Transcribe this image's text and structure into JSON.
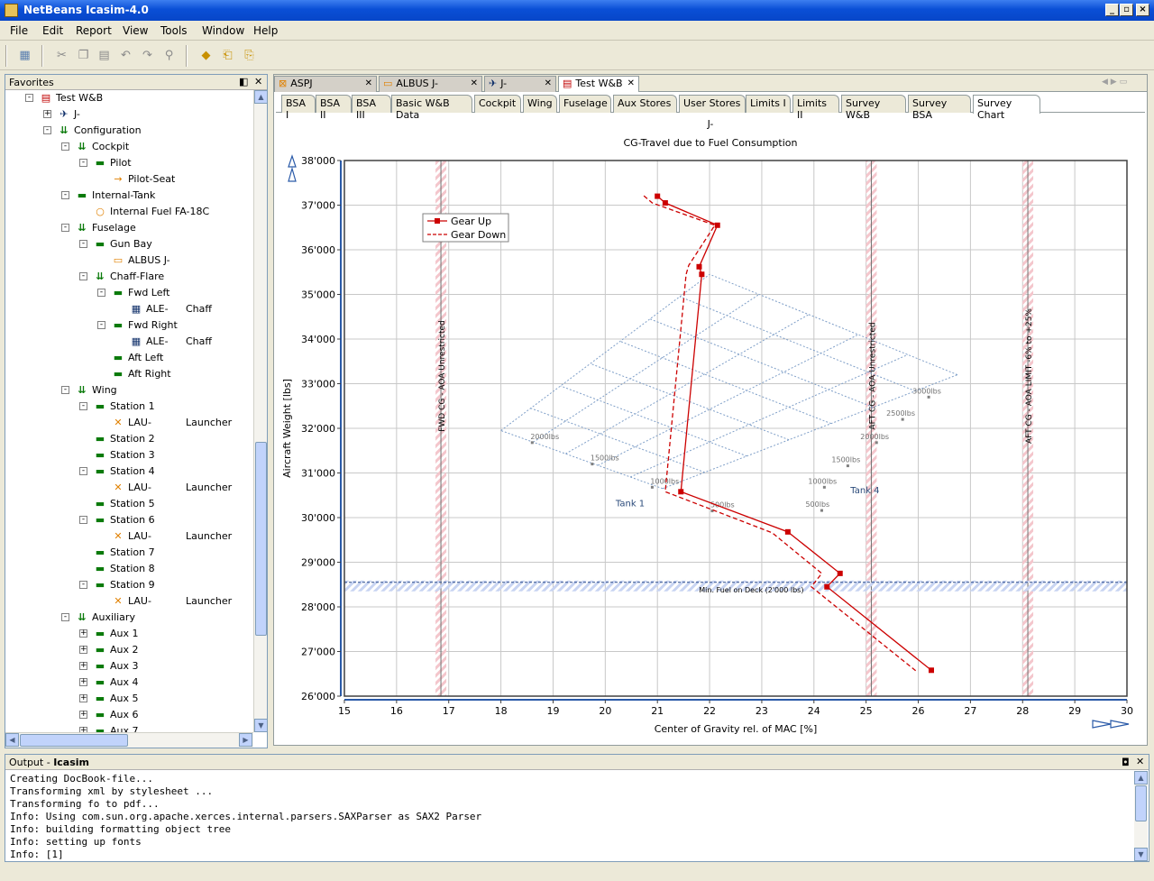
{
  "window": {
    "title": "NetBeans Icasim-4.0"
  },
  "menu": [
    "File",
    "Edit",
    "Report",
    "View",
    "Tools",
    "Window",
    "Help"
  ],
  "favorites": {
    "title": "Favorites",
    "tree": [
      {
        "label": "Test W&B",
        "depth": 1,
        "icon": "report-icon",
        "exp": "-"
      },
      {
        "label": "J-",
        "depth": 2,
        "icon": "aircraft-icon",
        "exp": "+"
      },
      {
        "label": "Configuration",
        "depth": 2,
        "icon": "config-icon",
        "exp": "-"
      },
      {
        "label": "Cockpit",
        "depth": 3,
        "icon": "config-icon",
        "exp": "-"
      },
      {
        "label": "Pilot",
        "depth": 4,
        "icon": "station-icon",
        "exp": "-"
      },
      {
        "label": "Pilot-Seat",
        "depth": 5,
        "icon": "seat-icon",
        "exp": ""
      },
      {
        "label": "Internal-Tank",
        "depth": 3,
        "icon": "station-icon",
        "exp": "-"
      },
      {
        "label": "Internal Fuel FA-18C",
        "depth": 4,
        "icon": "fuel-icon",
        "exp": ""
      },
      {
        "label": "Fuselage",
        "depth": 3,
        "icon": "config-icon",
        "exp": "-"
      },
      {
        "label": "Gun Bay",
        "depth": 4,
        "icon": "station-icon",
        "exp": "-"
      },
      {
        "label": "ALBUS J-",
        "depth": 5,
        "icon": "gun-icon",
        "exp": ""
      },
      {
        "label": "Chaff-Flare",
        "depth": 4,
        "icon": "config-icon",
        "exp": "-"
      },
      {
        "label": "Fwd Left",
        "depth": 5,
        "icon": "station-icon",
        "exp": "-"
      },
      {
        "label": "ALE-",
        "extra": "Chaff",
        "depth": 6,
        "icon": "chaff-icon",
        "exp": ""
      },
      {
        "label": "Fwd Right",
        "depth": 5,
        "icon": "station-icon",
        "exp": "-"
      },
      {
        "label": "ALE-",
        "extra": "Chaff",
        "depth": 6,
        "icon": "chaff-icon",
        "exp": ""
      },
      {
        "label": "Aft Left",
        "depth": 5,
        "icon": "station-icon",
        "exp": ""
      },
      {
        "label": "Aft Right",
        "depth": 5,
        "icon": "station-icon",
        "exp": ""
      },
      {
        "label": "Wing",
        "depth": 3,
        "icon": "config-icon",
        "exp": "-"
      },
      {
        "label": "Station 1",
        "depth": 4,
        "icon": "station-icon",
        "exp": "-"
      },
      {
        "label": "LAU-",
        "extra": "Launcher",
        "depth": 5,
        "icon": "launcher-icon",
        "exp": ""
      },
      {
        "label": "Station 2",
        "depth": 4,
        "icon": "station-icon",
        "exp": ""
      },
      {
        "label": "Station 3",
        "depth": 4,
        "icon": "station-icon",
        "exp": ""
      },
      {
        "label": "Station 4",
        "depth": 4,
        "icon": "station-icon",
        "exp": "-"
      },
      {
        "label": "LAU-",
        "extra": "Launcher",
        "depth": 5,
        "icon": "launcher-icon",
        "exp": ""
      },
      {
        "label": "Station 5",
        "depth": 4,
        "icon": "station-icon",
        "exp": ""
      },
      {
        "label": "Station 6",
        "depth": 4,
        "icon": "station-icon",
        "exp": "-"
      },
      {
        "label": "LAU-",
        "extra": "Launcher",
        "depth": 5,
        "icon": "launcher-icon",
        "exp": ""
      },
      {
        "label": "Station 7",
        "depth": 4,
        "icon": "station-icon",
        "exp": ""
      },
      {
        "label": "Station 8",
        "depth": 4,
        "icon": "station-icon",
        "exp": ""
      },
      {
        "label": "Station 9",
        "depth": 4,
        "icon": "station-icon",
        "exp": "-"
      },
      {
        "label": "LAU-",
        "extra": "Launcher",
        "depth": 5,
        "icon": "launcher-icon",
        "exp": ""
      },
      {
        "label": "Auxiliary",
        "depth": 3,
        "icon": "config-icon",
        "exp": "-"
      },
      {
        "label": "Aux 1",
        "depth": 4,
        "icon": "station-icon",
        "exp": "+"
      },
      {
        "label": "Aux 2",
        "depth": 4,
        "icon": "station-icon",
        "exp": "+"
      },
      {
        "label": "Aux 3",
        "depth": 4,
        "icon": "station-icon",
        "exp": "+"
      },
      {
        "label": "Aux 4",
        "depth": 4,
        "icon": "station-icon",
        "exp": "+"
      },
      {
        "label": "Aux 5",
        "depth": 4,
        "icon": "station-icon",
        "exp": "+"
      },
      {
        "label": "Aux 6",
        "depth": 4,
        "icon": "station-icon",
        "exp": "+"
      },
      {
        "label": "Aux 7",
        "depth": 4,
        "icon": "station-icon",
        "exp": "+"
      }
    ]
  },
  "doc_tabs": [
    {
      "label": "ASPJ",
      "icon": "x-doc-icon",
      "selected": false
    },
    {
      "label": "ALBUS J-",
      "icon": "gun-icon",
      "selected": false
    },
    {
      "label": "J-",
      "icon": "aircraft-icon",
      "selected": false
    },
    {
      "label": "Test W&B",
      "icon": "report-icon",
      "selected": true
    }
  ],
  "sub_tabs": [
    "BSA I",
    "BSA II",
    "BSA III",
    "Basic W&B Data",
    "Cockpit",
    "Wing",
    "Fuselage",
    "Aux Stores",
    "User Stores",
    "Limits I",
    "Limits II",
    "Survey W&B",
    "Survey BSA",
    "Survey Chart"
  ],
  "selected_sub_tab": "Survey Chart",
  "chart_data": {
    "type": "line",
    "title": "J-",
    "subtitle": "CG-Travel due to Fuel Consumption",
    "xlabel": "Center of Gravity rel. of MAC [%]",
    "ylabel": "Aircraft Weight [lbs]",
    "xlim": [
      15,
      30
    ],
    "ylim": [
      26000,
      38000
    ],
    "x_ticks": [
      "15",
      "16",
      "17",
      "18",
      "19",
      "20",
      "21",
      "22",
      "23",
      "24",
      "25",
      "26",
      "27",
      "28",
      "29",
      "30"
    ],
    "y_ticks": [
      "26'000",
      "27'000",
      "28'000",
      "29'000",
      "30'000",
      "31'000",
      "32'000",
      "33'000",
      "34'000",
      "35'000",
      "36'000",
      "37'000",
      "38'000"
    ],
    "legend_position": "top-left",
    "series": [
      {
        "name": "Gear Up",
        "style": "solid",
        "color": "#cc0000",
        "points": [
          [
            26.25,
            26580
          ],
          [
            24.25,
            28450
          ],
          [
            24.5,
            28750
          ],
          [
            23.5,
            29680
          ],
          [
            21.45,
            30580
          ],
          [
            21.85,
            35450
          ],
          [
            21.8,
            35620
          ],
          [
            22.15,
            36550
          ],
          [
            21.15,
            37050
          ],
          [
            21.0,
            37200
          ]
        ]
      },
      {
        "name": "Gear Down",
        "style": "dashed",
        "color": "#cc0000",
        "points": [
          [
            25.95,
            26570
          ],
          [
            23.95,
            28450
          ],
          [
            24.15,
            28750
          ],
          [
            23.2,
            29660
          ],
          [
            21.15,
            30580
          ],
          [
            21.55,
            35450
          ],
          [
            21.6,
            35650
          ],
          [
            22.1,
            36550
          ],
          [
            20.9,
            37050
          ],
          [
            20.7,
            37250
          ]
        ]
      }
    ],
    "vertical_limits": [
      {
        "x": 16.85,
        "label": "FWD CG - AOA Unrestricted"
      },
      {
        "x": 25.1,
        "label": "AFT CG - AOA Unrestricted"
      },
      {
        "x": 28.1,
        "label": "AFT CG - AOA LIMIT -6% to +25%"
      }
    ],
    "horizontal_limit": {
      "y": 28550,
      "label": "Min. Fuel on Deck (2'000 lbs)"
    },
    "fuel_grid": {
      "tank1_label": "Tank 1",
      "tank4_label": "Tank 4",
      "tank1_ticks": [
        {
          "label": "500lbs",
          "x": 22.05,
          "y": 30150
        },
        {
          "label": "1000lbs",
          "x": 20.9,
          "y": 30680
        },
        {
          "label": "1500lbs",
          "x": 19.75,
          "y": 31200
        },
        {
          "label": "2000lbs",
          "x": 18.6,
          "y": 31680
        }
      ],
      "tank4_ticks": [
        {
          "label": "500lbs",
          "x": 24.15,
          "y": 30160
        },
        {
          "label": "1000lbs",
          "x": 24.2,
          "y": 30680
        },
        {
          "label": "1500lbs",
          "x": 24.65,
          "y": 31160
        },
        {
          "label": "2000lbs",
          "x": 25.2,
          "y": 31680
        },
        {
          "label": "2500lbs",
          "x": 25.7,
          "y": 32200
        },
        {
          "label": "3000lbs",
          "x": 26.2,
          "y": 32700
        }
      ],
      "corners": {
        "bottom": [
          21.1,
          30650
        ],
        "left": [
          18.0,
          31950
        ],
        "top": [
          22.0,
          35450
        ],
        "right": [
          26.75,
          33200
        ]
      }
    }
  },
  "output": {
    "title": "Output - ",
    "title_bold": "Icasim",
    "lines": [
      "Creating DocBook-file...",
      "Transforming xml by stylesheet ...",
      "Transforming fo to pdf...",
      "Info: Using com.sun.org.apache.xerces.internal.parsers.SAXParser as SAX2 Parser",
      "Info: building formatting object tree",
      "Info: setting up fonts",
      "Info: [1]"
    ]
  }
}
